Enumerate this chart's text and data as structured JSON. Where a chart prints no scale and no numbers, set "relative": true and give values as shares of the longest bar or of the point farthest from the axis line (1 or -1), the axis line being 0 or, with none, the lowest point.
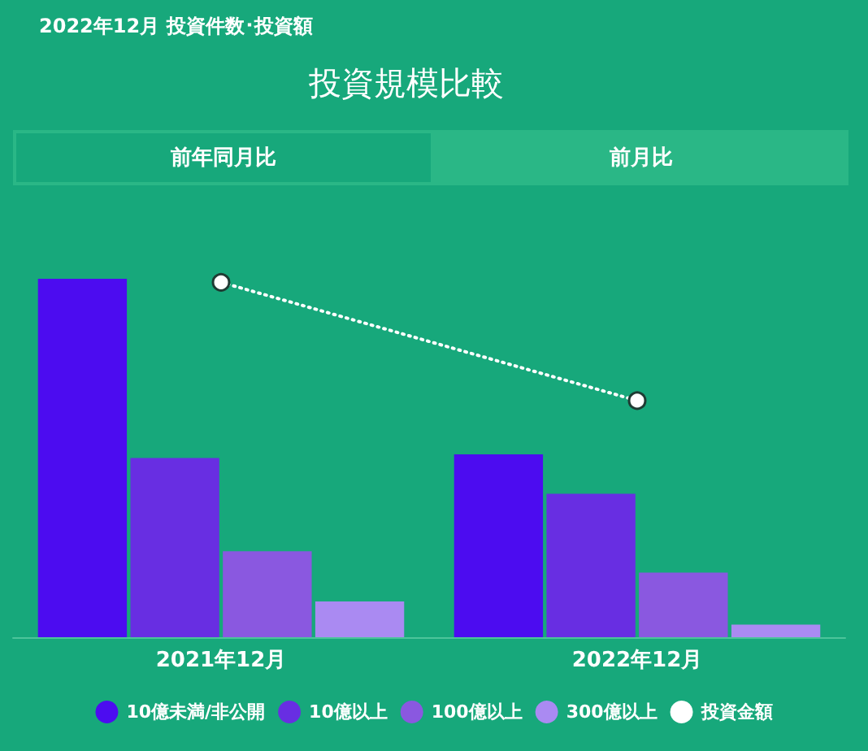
{
  "chart_data": {
    "type": "bar",
    "title": "投資規模比較",
    "subtitle": "2022年12月  投資件数･投資額",
    "annotations": [
      "前年同月比",
      "前月比"
    ],
    "categories": [
      "2021年12月",
      "2022年12月"
    ],
    "relative": true,
    "series": [
      {
        "name": "10億未満/非公開",
        "color": "#4c0cf0",
        "values": [
          1,
          0.51
        ]
      },
      {
        "name": "10億以上",
        "color": "#682ee2",
        "values": [
          0.5,
          0.4
        ]
      },
      {
        "name": "100億以上",
        "color": "#8a58e0",
        "values": [
          0.24,
          0.18
        ]
      },
      {
        "name": "300億以上",
        "color": "#aa8af2",
        "values": [
          0.1,
          0.035
        ]
      },
      {
        "name": "投資金額",
        "type": "line",
        "color": "#ffffff",
        "values": [
          0.99,
          0.66
        ],
        "line_style": "dotted",
        "marker": "circle"
      }
    ],
    "legend": "bottom"
  }
}
